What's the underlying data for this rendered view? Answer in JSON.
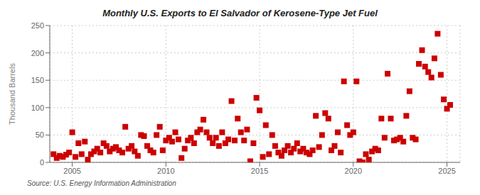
{
  "chart_data": {
    "type": "scatter",
    "title": "Monthly U.S. Exports to El Salvador of Kerosene-Type Jet Fuel",
    "ylabel": "Thousand Barrels",
    "annotations": [
      "Source: U.S. Energy Information Administration"
    ],
    "color": "#cc0000",
    "marker": "square",
    "grid": true,
    "xlim": [
      2003.8,
      2025.7
    ],
    "ylim": [
      0,
      250
    ],
    "xticks": [
      2005,
      2010,
      2015,
      2020,
      2025
    ],
    "yticks": [
      0,
      50,
      100,
      150,
      200,
      250
    ],
    "x": [
      2004.0,
      2004.17,
      2004.33,
      2004.5,
      2004.67,
      2004.83,
      2005.0,
      2005.17,
      2005.33,
      2005.5,
      2005.67,
      2005.83,
      2006.0,
      2006.17,
      2006.33,
      2006.5,
      2006.67,
      2006.83,
      2007.0,
      2007.17,
      2007.33,
      2007.5,
      2007.67,
      2007.83,
      2008.0,
      2008.17,
      2008.33,
      2008.5,
      2008.67,
      2008.83,
      2009.0,
      2009.17,
      2009.33,
      2009.5,
      2009.67,
      2009.83,
      2010.0,
      2010.17,
      2010.33,
      2010.5,
      2010.67,
      2010.83,
      2011.0,
      2011.17,
      2011.33,
      2011.5,
      2011.67,
      2011.83,
      2012.0,
      2012.17,
      2012.33,
      2012.5,
      2012.67,
      2012.83,
      2013.0,
      2013.17,
      2013.33,
      2013.5,
      2013.67,
      2013.83,
      2014.0,
      2014.17,
      2014.33,
      2014.5,
      2014.67,
      2014.83,
      2015.0,
      2015.17,
      2015.33,
      2015.5,
      2015.67,
      2015.83,
      2016.0,
      2016.17,
      2016.33,
      2016.5,
      2016.67,
      2016.83,
      2017.0,
      2017.17,
      2017.33,
      2017.5,
      2017.67,
      2017.83,
      2018.0,
      2018.17,
      2018.33,
      2018.5,
      2018.67,
      2018.83,
      2019.0,
      2019.17,
      2019.33,
      2019.5,
      2019.67,
      2019.83,
      2020.0,
      2020.17,
      2020.33,
      2020.5,
      2020.67,
      2020.83,
      2021.0,
      2021.17,
      2021.33,
      2021.5,
      2021.67,
      2021.83,
      2022.0,
      2022.17,
      2022.33,
      2022.5,
      2022.67,
      2022.83,
      2023.0,
      2023.17,
      2023.33,
      2023.5,
      2023.67,
      2023.83,
      2024.0,
      2024.17,
      2024.33,
      2024.5,
      2024.67,
      2024.83,
      2025.0,
      2025.17
    ],
    "values": [
      15,
      8,
      12,
      10,
      14,
      18,
      55,
      10,
      35,
      15,
      38,
      5,
      15,
      20,
      25,
      18,
      35,
      30,
      20,
      25,
      28,
      22,
      18,
      65,
      25,
      30,
      20,
      12,
      50,
      48,
      30,
      22,
      18,
      50,
      65,
      22,
      40,
      45,
      38,
      55,
      42,
      8,
      25,
      40,
      45,
      35,
      55,
      60,
      78,
      55,
      45,
      35,
      45,
      30,
      55,
      35,
      42,
      112,
      40,
      80,
      55,
      40,
      60,
      2,
      35,
      118,
      95,
      10,
      68,
      15,
      50,
      30,
      18,
      12,
      22,
      30,
      18,
      25,
      35,
      20,
      25,
      18,
      15,
      22,
      85,
      28,
      50,
      90,
      80,
      22,
      30,
      55,
      18,
      148,
      68,
      50,
      55,
      148,
      2,
      0,
      15,
      5,
      20,
      25,
      22,
      80,
      45,
      162,
      80,
      40,
      42,
      45,
      38,
      85,
      130,
      45,
      42,
      180,
      205,
      175,
      165,
      155,
      190,
      235,
      160,
      115,
      98,
      105
    ]
  }
}
